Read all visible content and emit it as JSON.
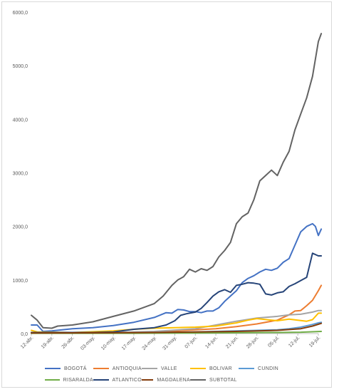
{
  "chart_data": {
    "type": "line",
    "title": "",
    "xlabel": "",
    "ylabel": "",
    "ylim": [
      0,
      6000
    ],
    "y_ticks": [
      "0,0",
      "1000,0",
      "2000,0",
      "3000,0",
      "4000,0",
      "5000,0",
      "6000,0"
    ],
    "x_ticks": [
      "12-abr.",
      "19-abr.",
      "26-abr.",
      "03-may.",
      "10-may.",
      "17-may.",
      "24-may.",
      "31-may.",
      "07-jun.",
      "14-jun.",
      "21-jun.",
      "28-jun.",
      "05-jul.",
      "12-jul.",
      "19-jul."
    ],
    "x_start": "2020-04-12",
    "x_end": "2020-07-19",
    "grid": false,
    "legend_position": "bottom",
    "series": [
      {
        "name": "BOGOTÁ",
        "color": "#4472C4",
        "values": [
          [
            0,
            160
          ],
          [
            2,
            160
          ],
          [
            4,
            40
          ],
          [
            7,
            50
          ],
          [
            14,
            90
          ],
          [
            21,
            110
          ],
          [
            28,
            150
          ],
          [
            35,
            210
          ],
          [
            42,
            300
          ],
          [
            46,
            390
          ],
          [
            48,
            380
          ],
          [
            50,
            450
          ],
          [
            52,
            440
          ],
          [
            54,
            410
          ],
          [
            56,
            410
          ],
          [
            58,
            390
          ],
          [
            60,
            420
          ],
          [
            62,
            420
          ],
          [
            64,
            480
          ],
          [
            66,
            600
          ],
          [
            68,
            700
          ],
          [
            70,
            800
          ],
          [
            72,
            950
          ],
          [
            74,
            1030
          ],
          [
            76,
            1080
          ],
          [
            78,
            1150
          ],
          [
            80,
            1200
          ],
          [
            82,
            1180
          ],
          [
            84,
            1220
          ],
          [
            86,
            1330
          ],
          [
            88,
            1400
          ],
          [
            90,
            1650
          ],
          [
            92,
            1900
          ],
          [
            94,
            2000
          ],
          [
            96,
            2050
          ],
          [
            97,
            2000
          ],
          [
            98,
            1830
          ],
          [
            99,
            1950
          ]
        ]
      },
      {
        "name": "ANTIOQUIA",
        "color": "#ED7D31",
        "values": [
          [
            0,
            20
          ],
          [
            21,
            20
          ],
          [
            42,
            30
          ],
          [
            56,
            70
          ],
          [
            63,
            90
          ],
          [
            70,
            130
          ],
          [
            77,
            180
          ],
          [
            84,
            250
          ],
          [
            88,
            350
          ],
          [
            90,
            420
          ],
          [
            92,
            430
          ],
          [
            94,
            520
          ],
          [
            96,
            620
          ],
          [
            98,
            800
          ],
          [
            99,
            900
          ]
        ]
      },
      {
        "name": "VALLE",
        "color": "#A5A5A5",
        "values": [
          [
            0,
            10
          ],
          [
            14,
            10
          ],
          [
            28,
            20
          ],
          [
            42,
            40
          ],
          [
            56,
            90
          ],
          [
            63,
            160
          ],
          [
            70,
            230
          ],
          [
            77,
            290
          ],
          [
            84,
            320
          ],
          [
            88,
            350
          ],
          [
            92,
            360
          ],
          [
            96,
            400
          ],
          [
            98,
            430
          ],
          [
            99,
            430
          ]
        ]
      },
      {
        "name": "BOLIVAR",
        "color": "#FFC000",
        "values": [
          [
            0,
            60
          ],
          [
            2,
            30
          ],
          [
            14,
            20
          ],
          [
            28,
            50
          ],
          [
            35,
            80
          ],
          [
            42,
            100
          ],
          [
            49,
            110
          ],
          [
            56,
            120
          ],
          [
            63,
            140
          ],
          [
            70,
            200
          ],
          [
            74,
            250
          ],
          [
            77,
            280
          ],
          [
            84,
            240
          ],
          [
            88,
            270
          ],
          [
            94,
            230
          ],
          [
            96,
            260
          ],
          [
            98,
            380
          ],
          [
            99,
            380
          ]
        ]
      },
      {
        "name": "CUNDIN",
        "color": "#5B9BD5",
        "values": [
          [
            0,
            10
          ],
          [
            28,
            10
          ],
          [
            42,
            20
          ],
          [
            56,
            30
          ],
          [
            63,
            40
          ],
          [
            70,
            50
          ],
          [
            77,
            60
          ],
          [
            84,
            70
          ],
          [
            88,
            90
          ],
          [
            92,
            120
          ],
          [
            96,
            170
          ],
          [
            98,
            200
          ],
          [
            99,
            210
          ]
        ]
      },
      {
        "name": "RISARALDA",
        "color": "#70AD47",
        "values": [
          [
            0,
            5
          ],
          [
            35,
            5
          ],
          [
            56,
            10
          ],
          [
            70,
            15
          ],
          [
            84,
            20
          ],
          [
            92,
            25
          ],
          [
            99,
            40
          ]
        ]
      },
      {
        "name": "ATLANTICO",
        "color": "#264478",
        "values": [
          [
            0,
            20
          ],
          [
            21,
            20
          ],
          [
            28,
            30
          ],
          [
            35,
            80
          ],
          [
            42,
            110
          ],
          [
            46,
            160
          ],
          [
            49,
            240
          ],
          [
            51,
            340
          ],
          [
            53,
            370
          ],
          [
            56,
            400
          ],
          [
            58,
            470
          ],
          [
            60,
            580
          ],
          [
            62,
            700
          ],
          [
            64,
            780
          ],
          [
            66,
            820
          ],
          [
            68,
            770
          ],
          [
            70,
            900
          ],
          [
            72,
            920
          ],
          [
            74,
            950
          ],
          [
            76,
            940
          ],
          [
            78,
            920
          ],
          [
            80,
            740
          ],
          [
            82,
            720
          ],
          [
            84,
            760
          ],
          [
            86,
            780
          ],
          [
            88,
            880
          ],
          [
            90,
            930
          ],
          [
            92,
            990
          ],
          [
            94,
            1050
          ],
          [
            96,
            1500
          ],
          [
            98,
            1450
          ],
          [
            99,
            1450
          ]
        ]
      },
      {
        "name": "MAGDALENA",
        "color": "#843C0C",
        "values": [
          [
            0,
            10
          ],
          [
            28,
            15
          ],
          [
            42,
            20
          ],
          [
            56,
            30
          ],
          [
            70,
            40
          ],
          [
            84,
            60
          ],
          [
            92,
            90
          ],
          [
            96,
            140
          ],
          [
            99,
            190
          ]
        ]
      },
      {
        "name": "SUBTOTAL",
        "color": "#636363",
        "values": [
          [
            0,
            340
          ],
          [
            2,
            250
          ],
          [
            4,
            110
          ],
          [
            7,
            100
          ],
          [
            9,
            140
          ],
          [
            14,
            160
          ],
          [
            21,
            220
          ],
          [
            28,
            320
          ],
          [
            35,
            420
          ],
          [
            38,
            480
          ],
          [
            42,
            560
          ],
          [
            45,
            700
          ],
          [
            48,
            900
          ],
          [
            50,
            1000
          ],
          [
            52,
            1060
          ],
          [
            54,
            1200
          ],
          [
            56,
            1150
          ],
          [
            58,
            1210
          ],
          [
            60,
            1180
          ],
          [
            62,
            1250
          ],
          [
            64,
            1430
          ],
          [
            66,
            1550
          ],
          [
            68,
            1700
          ],
          [
            70,
            2050
          ],
          [
            72,
            2180
          ],
          [
            74,
            2250
          ],
          [
            76,
            2500
          ],
          [
            78,
            2850
          ],
          [
            80,
            2950
          ],
          [
            82,
            3050
          ],
          [
            84,
            2950
          ],
          [
            86,
            3200
          ],
          [
            88,
            3400
          ],
          [
            90,
            3800
          ],
          [
            92,
            4100
          ],
          [
            94,
            4400
          ],
          [
            96,
            4800
          ],
          [
            98,
            5450
          ],
          [
            99,
            5600
          ]
        ]
      }
    ]
  }
}
